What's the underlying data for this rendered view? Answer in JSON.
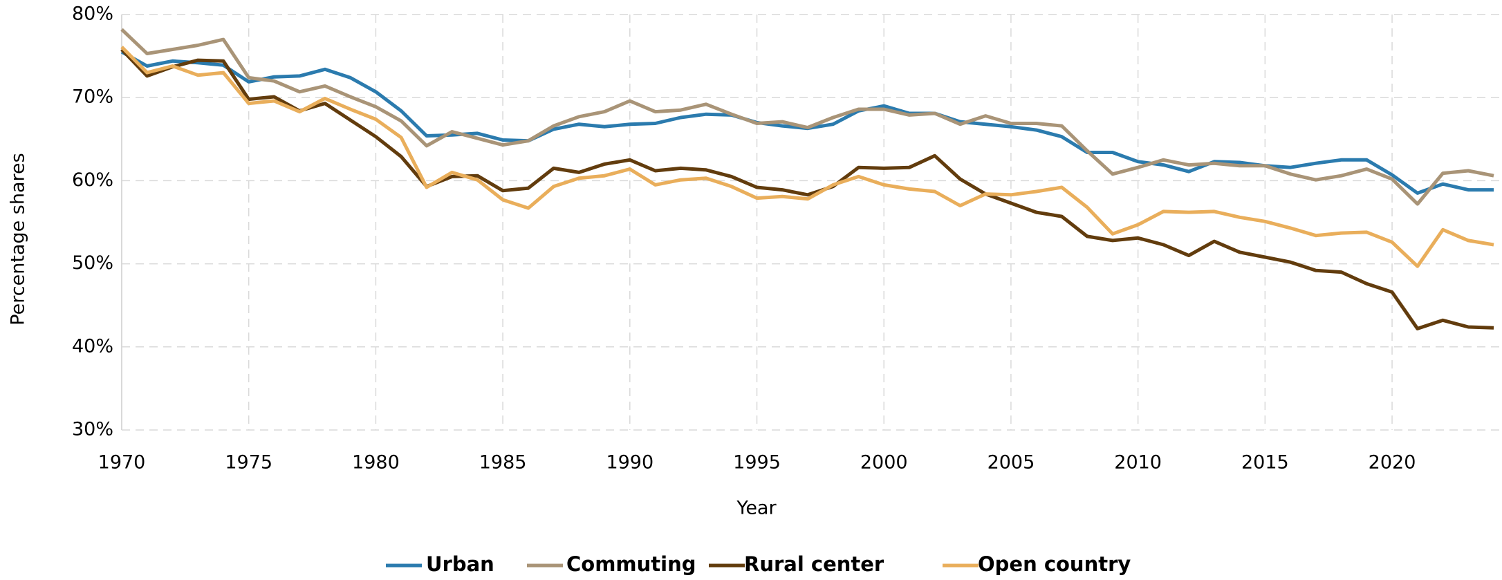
{
  "chart_data": {
    "type": "line",
    "x_label": "Year",
    "y_label": "Percentage shares",
    "x": [
      1970,
      1971,
      1972,
      1973,
      1974,
      1975,
      1976,
      1977,
      1978,
      1979,
      1980,
      1981,
      1982,
      1983,
      1984,
      1985,
      1986,
      1987,
      1988,
      1989,
      1990,
      1991,
      1992,
      1993,
      1994,
      1995,
      1996,
      1997,
      1998,
      1999,
      2000,
      2001,
      2002,
      2003,
      2004,
      2005,
      2006,
      2007,
      2008,
      2009,
      2010,
      2011,
      2012,
      2013,
      2014,
      2015,
      2016,
      2017,
      2018,
      2019,
      2020,
      2021,
      2022,
      2023,
      2024
    ],
    "series": [
      {
        "name": "Urban",
        "color": "#2b7bae",
        "values": [
          75.5,
          73.8,
          74.4,
          74.2,
          73.9,
          71.9,
          72.5,
          72.6,
          73.4,
          72.4,
          70.7,
          68.4,
          65.4,
          65.5,
          65.7,
          64.9,
          64.8,
          66.2,
          66.8,
          66.5,
          66.8,
          66.9,
          67.6,
          68.0,
          67.9,
          67.0,
          66.6,
          66.3,
          66.8,
          68.4,
          69.0,
          68.1,
          68.1,
          67.1,
          66.8,
          66.5,
          66.1,
          65.3,
          63.4,
          63.4,
          62.3,
          61.9,
          61.1,
          62.3,
          62.2,
          61.8,
          61.6,
          62.1,
          62.5,
          62.5,
          60.7,
          58.5,
          59.6,
          58.9,
          58.9
        ]
      },
      {
        "name": "Commuting",
        "color": "#a99477",
        "values": [
          78.2,
          75.3,
          75.8,
          76.3,
          77.0,
          72.4,
          72.0,
          70.7,
          71.4,
          70.1,
          68.9,
          67.2,
          64.2,
          65.9,
          65.1,
          64.3,
          64.8,
          66.6,
          67.7,
          68.3,
          69.6,
          68.3,
          68.5,
          69.2,
          68.0,
          66.9,
          67.1,
          66.4,
          67.6,
          68.6,
          68.6,
          67.9,
          68.1,
          66.8,
          67.8,
          66.9,
          66.9,
          66.6,
          63.6,
          60.8,
          61.6,
          62.5,
          61.9,
          62.1,
          61.8,
          61.8,
          60.8,
          60.1,
          60.6,
          61.4,
          60.2,
          57.2,
          60.9,
          61.2,
          60.6
        ]
      },
      {
        "name": "Rural center",
        "color": "#623c0d",
        "values": [
          75.8,
          72.6,
          73.7,
          74.5,
          74.4,
          69.8,
          70.1,
          68.4,
          69.3,
          67.3,
          65.3,
          62.9,
          59.3,
          60.5,
          60.6,
          58.8,
          59.1,
          61.5,
          61.0,
          62.0,
          62.5,
          61.2,
          61.5,
          61.3,
          60.5,
          59.2,
          58.9,
          58.3,
          59.3,
          61.6,
          61.5,
          61.6,
          63.0,
          60.2,
          58.4,
          57.3,
          56.2,
          55.7,
          53.3,
          52.8,
          53.1,
          52.3,
          51.0,
          52.7,
          51.4,
          50.8,
          50.2,
          49.2,
          49.0,
          47.6,
          46.6,
          42.2,
          43.2,
          42.4,
          42.3
        ]
      },
      {
        "name": "Open country",
        "color": "#e9ae5b",
        "values": [
          76.1,
          73.0,
          73.8,
          72.7,
          73.0,
          69.3,
          69.6,
          68.3,
          69.9,
          68.6,
          67.4,
          65.2,
          59.2,
          61.0,
          60.1,
          57.7,
          56.7,
          59.3,
          60.3,
          60.6,
          61.4,
          59.5,
          60.1,
          60.3,
          59.3,
          57.9,
          58.1,
          57.8,
          59.5,
          60.5,
          59.5,
          59.0,
          58.7,
          57.0,
          58.4,
          58.3,
          58.7,
          59.2,
          56.8,
          53.6,
          54.7,
          56.3,
          56.2,
          56.3,
          55.6,
          55.1,
          54.3,
          53.4,
          53.7,
          53.8,
          52.6,
          49.7,
          54.1,
          52.8,
          52.3
        ]
      }
    ],
    "xlim": [
      1970,
      2024
    ],
    "xticks": [
      1970,
      1975,
      1980,
      1985,
      1990,
      1995,
      2000,
      2005,
      2010,
      2015,
      2020
    ],
    "ylim": [
      30,
      80
    ],
    "yticks": [
      {
        "value": 30,
        "label": "30%"
      },
      {
        "value": 40,
        "label": "40%"
      },
      {
        "value": 50,
        "label": "50%"
      },
      {
        "value": 60,
        "label": "60%"
      },
      {
        "value": 70,
        "label": "70%"
      },
      {
        "value": 80,
        "label": "80%"
      }
    ],
    "grid": true,
    "legend": "bottom"
  }
}
